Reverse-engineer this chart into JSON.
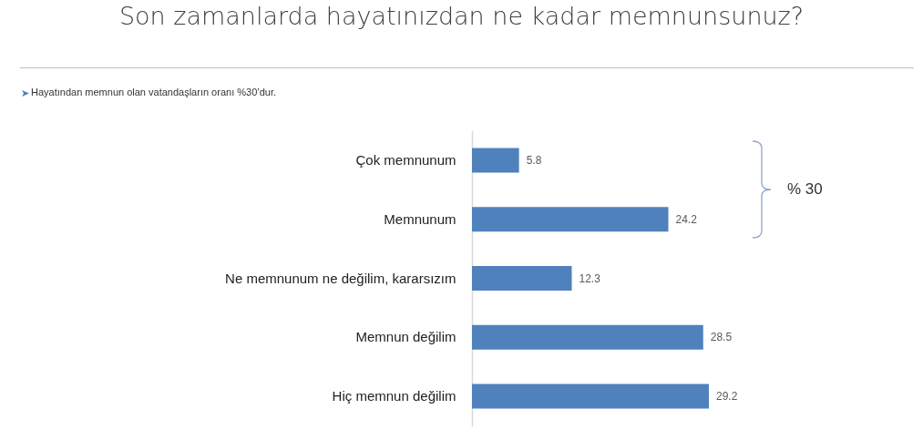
{
  "chart_data": {
    "type": "bar",
    "title": "Son zamanlarda hayatınızdan ne kadar memnunsunuz?",
    "subtitle": "Hayatından memnun olan vatandaşların oranı %30’dur.",
    "categories": [
      "Çok memnunum",
      "Memnunum",
      "Ne memnunum ne değilim, kararsızım",
      "Memnun değilim",
      "Hiç memnun değilim"
    ],
    "values": [
      5.8,
      24.2,
      12.3,
      28.5,
      29.2
    ],
    "color": "#4f81bd",
    "orientation": "horizontal",
    "data_labels": true,
    "annotations": [
      "% 30"
    ]
  }
}
